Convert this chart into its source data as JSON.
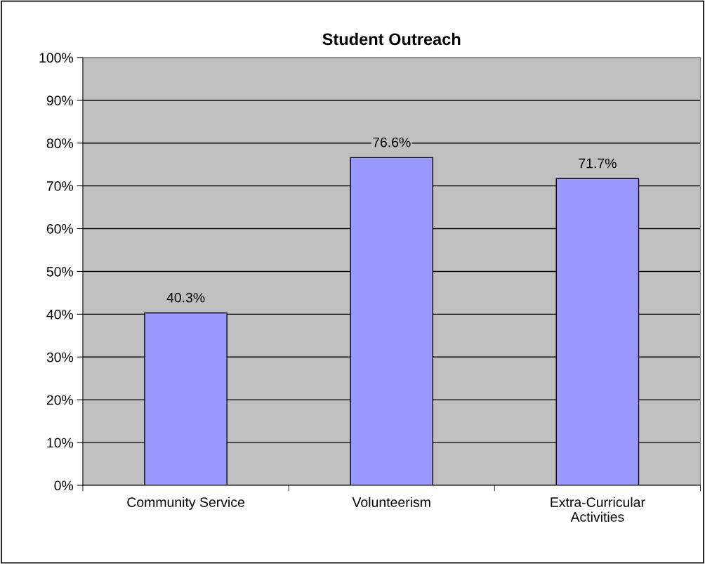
{
  "chart_data": {
    "type": "bar",
    "title": "Student Outreach",
    "categories": [
      "Community Service",
      "Volunteerism",
      "Extra-Curricular Activities"
    ],
    "values": [
      40.3,
      76.6,
      71.7
    ],
    "value_labels": [
      "40.3%",
      "76.6%",
      "71.7%"
    ],
    "color": "#9999ff",
    "ylim": [
      0,
      100
    ],
    "yticks": [
      {
        "value": 0,
        "label": "0%"
      },
      {
        "value": 10,
        "label": "10%"
      },
      {
        "value": 20,
        "label": "20%"
      },
      {
        "value": 30,
        "label": "30%"
      },
      {
        "value": 40,
        "label": "40%"
      },
      {
        "value": 50,
        "label": "50%"
      },
      {
        "value": 60,
        "label": "60%"
      },
      {
        "value": 70,
        "label": "70%"
      },
      {
        "value": 80,
        "label": "80%"
      },
      {
        "value": 90,
        "label": "90%"
      },
      {
        "value": 100,
        "label": "100%"
      }
    ],
    "grid": "y",
    "legend": false
  }
}
